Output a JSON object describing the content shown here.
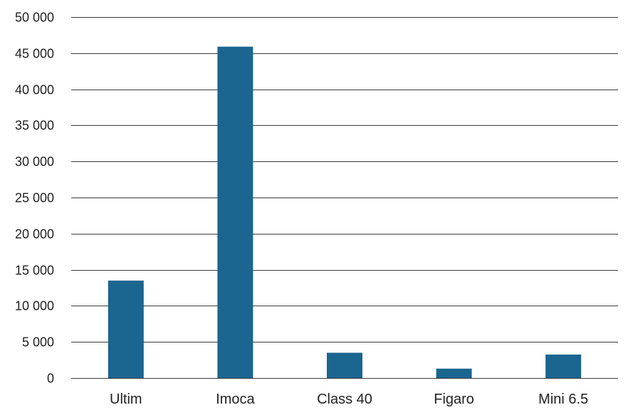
{
  "chart_data": {
    "type": "bar",
    "title": "",
    "xlabel": "",
    "ylabel": "",
    "categories": [
      "Ultim",
      "Imoca",
      "Class 40",
      "Figaro",
      "Mini 6.5"
    ],
    "values": [
      13500,
      45900,
      3500,
      1300,
      3250
    ],
    "ylim": [
      0,
      50000
    ],
    "yticks": [
      0,
      5000,
      10000,
      15000,
      20000,
      25000,
      30000,
      35000,
      40000,
      45000,
      50000
    ],
    "ytick_labels": [
      "0",
      "5 000",
      "10 000",
      "15 000",
      "20 000",
      "25 000",
      "30 000",
      "35 000",
      "40 000",
      "45 000",
      "50 000"
    ],
    "grid": true,
    "legend": "none",
    "bar_color": "#1a6690",
    "grid_color": "#3a3a3a",
    "text_color": "#222222"
  }
}
